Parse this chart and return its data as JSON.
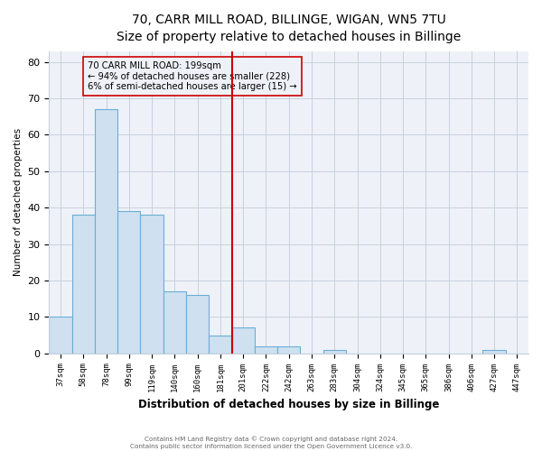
{
  "title": "70, CARR MILL ROAD, BILLINGE, WIGAN, WN5 7TU",
  "subtitle": "Size of property relative to detached houses in Billinge",
  "xlabel": "Distribution of detached houses by size in Billinge",
  "ylabel": "Number of detached properties",
  "bar_labels": [
    "37sqm",
    "58sqm",
    "78sqm",
    "99sqm",
    "119sqm",
    "140sqm",
    "160sqm",
    "181sqm",
    "201sqm",
    "222sqm",
    "242sqm",
    "263sqm",
    "283sqm",
    "304sqm",
    "324sqm",
    "345sqm",
    "365sqm",
    "386sqm",
    "406sqm",
    "427sqm",
    "447sqm"
  ],
  "bar_values": [
    10,
    38,
    67,
    39,
    38,
    17,
    16,
    5,
    7,
    2,
    2,
    0,
    1,
    0,
    0,
    0,
    0,
    0,
    0,
    1,
    0
  ],
  "bar_color": "#cfe0f0",
  "bar_edge_color": "#6baed6",
  "vline_color": "#cc0000",
  "annotation_title": "70 CARR MILL ROAD: 199sqm",
  "annotation_line1": "← 94% of detached houses are smaller (228)",
  "annotation_line2": "6% of semi-detached houses are larger (15) →",
  "annotation_box_edge": "#cc0000",
  "ylim": [
    0,
    83
  ],
  "yticks": [
    0,
    10,
    20,
    30,
    40,
    50,
    60,
    70,
    80
  ],
  "footer1": "Contains HM Land Registry data © Crown copyright and database right 2024.",
  "footer2": "Contains public sector information licensed under the Open Government Licence v3.0.",
  "bg_color": "#ffffff",
  "plot_bg_color": "#eef2f8",
  "grid_color": "#c8d0de",
  "title_fontsize": 10,
  "subtitle_fontsize": 8.5,
  "vline_x_index": 8
}
